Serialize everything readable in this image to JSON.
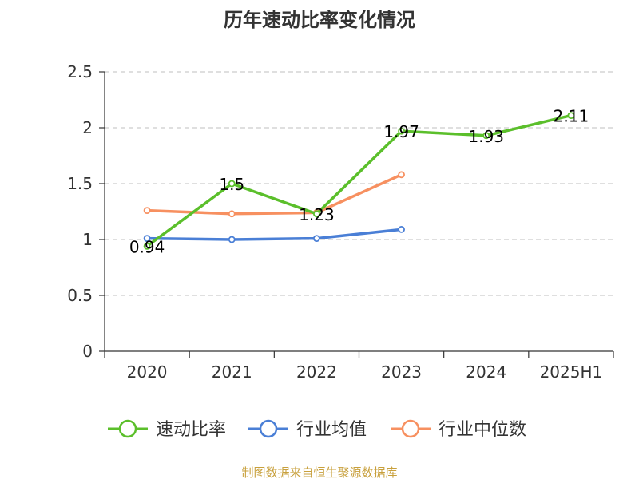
{
  "chart_data": {
    "type": "line",
    "title": "历年速动比率变化情况",
    "categories": [
      "2020",
      "2021",
      "2022",
      "2023",
      "2024",
      "2025H1"
    ],
    "ylim": [
      0,
      2.5
    ],
    "yticks": [
      "0",
      "0.5",
      "1",
      "1.5",
      "2",
      "2.5"
    ],
    "grid": true,
    "legend_position": "bottom",
    "series": [
      {
        "name": "速动比率",
        "color": "#5bbf2b",
        "values": [
          0.94,
          1.5,
          1.23,
          1.97,
          1.93,
          2.11
        ],
        "labels": [
          "0.94",
          "1.5",
          "1.23",
          "1.97",
          "1.93",
          "2.11"
        ]
      },
      {
        "name": "行业均值",
        "color": "#4a7fd6",
        "values": [
          1.01,
          1.0,
          1.01,
          1.09,
          null,
          null
        ]
      },
      {
        "name": "行业中位数",
        "color": "#f79060",
        "values": [
          1.26,
          1.23,
          1.24,
          1.58,
          null,
          null
        ]
      }
    ]
  },
  "source": {
    "text": "制图数据来自恒生聚源数据库",
    "color": "#c8a03c"
  }
}
